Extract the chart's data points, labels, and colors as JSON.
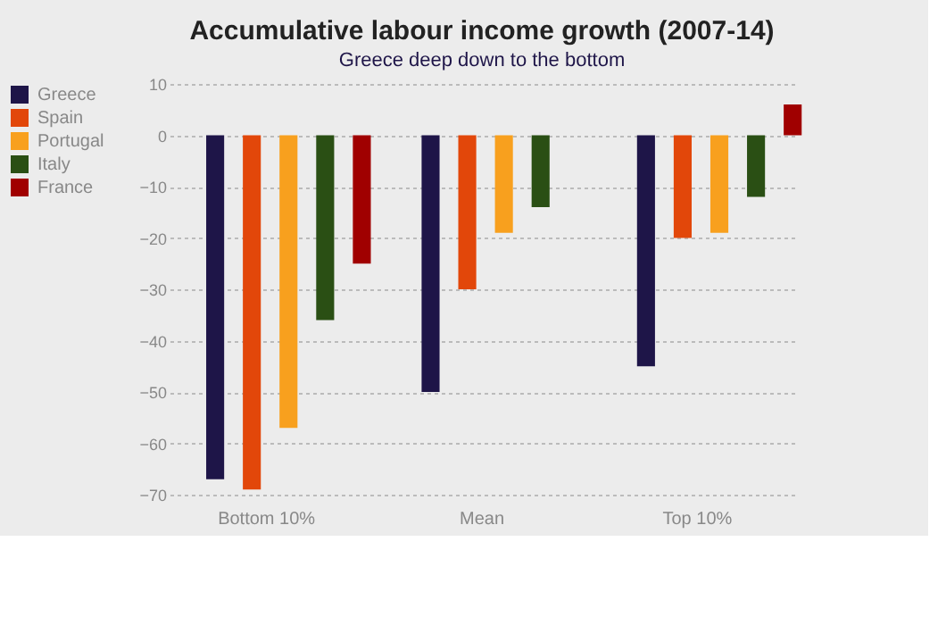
{
  "chart_data": {
    "type": "bar",
    "title": "Accumulative labour income growth (2007-14)",
    "subtitle": "Greece deep down to the bottom",
    "categories": [
      "Bottom 10%",
      "Mean",
      "Top 10%"
    ],
    "series": [
      {
        "name": "Greece",
        "color": "#1e1548",
        "values": [
          -67,
          -50,
          -45
        ]
      },
      {
        "name": "Spain",
        "color": "#e2470a",
        "values": [
          -69,
          -30,
          -20
        ]
      },
      {
        "name": "Portugal",
        "color": "#f8a01e",
        "values": [
          -57,
          -19,
          -19
        ]
      },
      {
        "name": "Italy",
        "color": "#2a4f14",
        "values": [
          -36,
          -14,
          -12
        ]
      },
      {
        "name": "France",
        "color": "#a00000",
        "values": [
          -25,
          null,
          6
        ]
      }
    ],
    "ylim": [
      -70,
      10
    ],
    "yticks": [
      10,
      0,
      -10,
      -20,
      -30,
      -40,
      -50,
      -60,
      -70
    ],
    "grid": "y",
    "legend": "left"
  }
}
